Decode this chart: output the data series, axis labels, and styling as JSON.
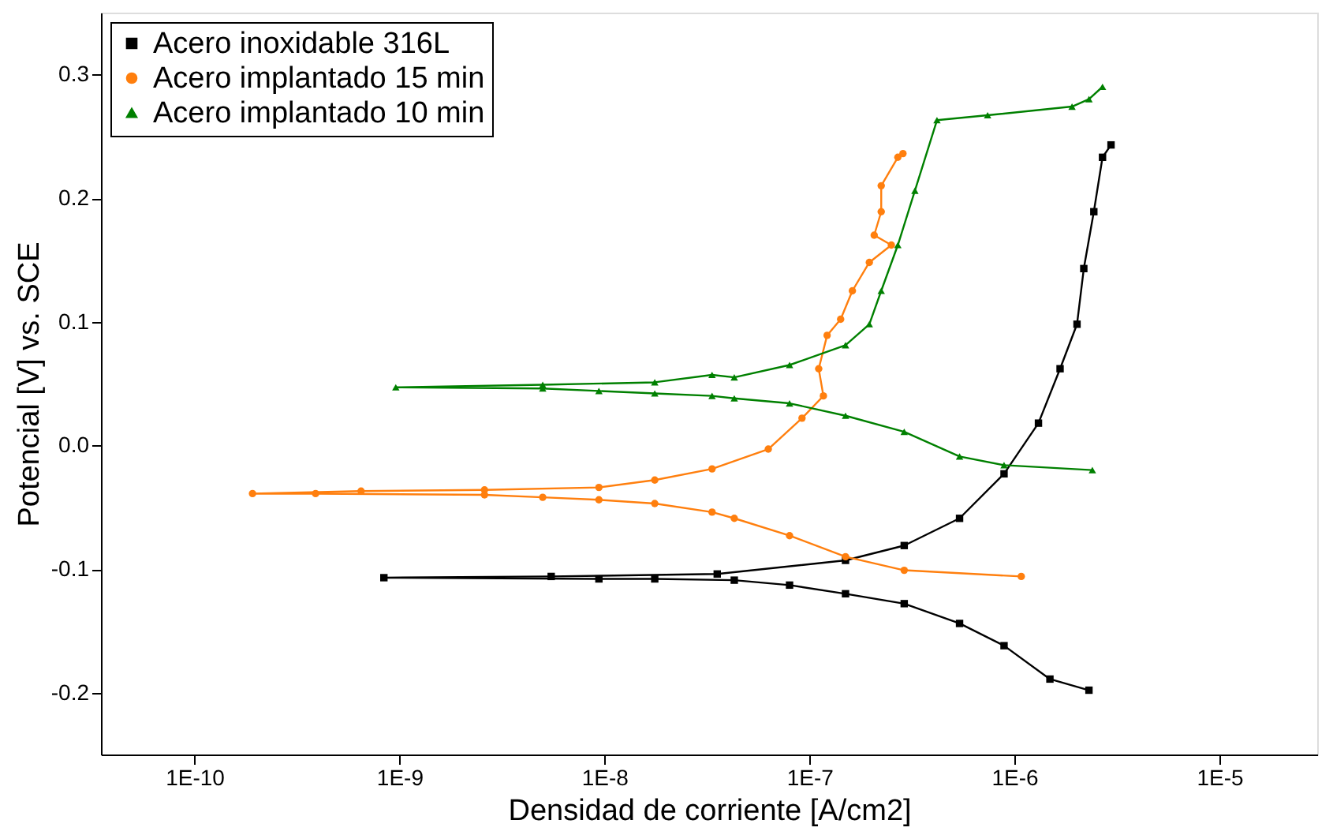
{
  "chart_data": {
    "type": "line",
    "xlabel": "Densidad de corriente [A/cm2]",
    "ylabel": "Potencial [V] vs. SCE",
    "log": "x",
    "grid": false,
    "legend": "top left",
    "xlim": [
      3.5e-11,
      3e-05
    ],
    "ylim": [
      -0.25,
      0.35
    ],
    "xticks": [
      {
        "value": 1e-10,
        "label": "1E-10"
      },
      {
        "value": 1e-09,
        "label": "1E-9"
      },
      {
        "value": 1e-08,
        "label": "1E-8"
      },
      {
        "value": 1e-07,
        "label": "1E-7"
      },
      {
        "value": 1e-06,
        "label": "1E-6"
      },
      {
        "value": 1e-05,
        "label": "1E-5"
      }
    ],
    "yticks": [
      -0.2,
      -0.1,
      {
        "value": 0,
        "label": "0.0"
      },
      0.1,
      0.2,
      0.3
    ],
    "series": [
      {
        "name": "Acero inoxidable 316L",
        "color": "#000000",
        "marker": "square",
        "x": [
          2.31e-06,
          1.49e-06,
          8.9e-07,
          5.4e-07,
          2.9e-07,
          1.5e-07,
          8e-08,
          4.3e-08,
          1.76e-08,
          9.4e-09,
          8.4e-10,
          5.5e-09,
          3.55e-08,
          1.5e-07,
          2.9e-07,
          5.4e-07,
          8.9e-07,
          1.31e-06,
          1.67e-06,
          2.02e-06,
          2.18e-06,
          2.44e-06,
          2.69e-06,
          2.96e-06
        ],
        "values": [
          -0.198,
          -0.189,
          -0.162,
          -0.144,
          -0.128,
          -0.12,
          -0.113,
          -0.109,
          -0.108,
          -0.108,
          -0.107,
          -0.106,
          -0.104,
          -0.093,
          -0.081,
          -0.059,
          -0.023,
          0.018,
          0.062,
          0.098,
          0.143,
          0.189,
          0.233,
          0.243
        ]
      },
      {
        "name": "Acero implantado 15 min",
        "color": "#ff7f0e",
        "marker": "circle",
        "x": [
          1.08e-06,
          2.9e-07,
          1.5e-07,
          8e-08,
          4.3e-08,
          3.35e-08,
          1.76e-08,
          9.4e-09,
          5e-09,
          2.6e-09,
          3.9e-10,
          1.92e-10,
          6.5e-10,
          2.6e-09,
          9.4e-09,
          1.76e-08,
          3.35e-08,
          6.3e-08,
          9.2e-08,
          1.17e-07,
          1.11e-07,
          1.22e-07,
          1.42e-07,
          1.62e-07,
          1.96e-07,
          2.51e-07,
          2.07e-07,
          2.24e-07,
          2.24e-07,
          2.7e-07,
          2.86e-07
        ],
        "values": [
          -0.106,
          -0.101,
          -0.09,
          -0.073,
          -0.059,
          -0.054,
          -0.047,
          -0.044,
          -0.042,
          -0.04,
          -0.039,
          -0.039,
          -0.037,
          -0.036,
          -0.034,
          -0.028,
          -0.019,
          -0.003,
          0.022,
          0.04,
          0.062,
          0.089,
          0.102,
          0.125,
          0.148,
          0.162,
          0.17,
          0.189,
          0.21,
          0.233,
          0.236
        ]
      },
      {
        "name": "Acero implantado 10 min",
        "color": "#008000",
        "marker": "triangle",
        "x": [
          2.4e-06,
          8.9e-07,
          5.4e-07,
          2.9e-07,
          1.5e-07,
          8e-08,
          4.3e-08,
          3.35e-08,
          1.76e-08,
          9.4e-09,
          5e-09,
          9.6e-10,
          5e-09,
          1.76e-08,
          3.35e-08,
          4.3e-08,
          8e-08,
          1.5e-07,
          1.96e-07,
          2.24e-07,
          2.7e-07,
          3.27e-07,
          4.19e-07,
          7.4e-07,
          1.91e-06,
          2.31e-06,
          2.69e-06
        ],
        "values": [
          -0.02,
          -0.016,
          -0.009,
          0.011,
          0.024,
          0.034,
          0.038,
          0.04,
          0.042,
          0.044,
          0.046,
          0.047,
          0.049,
          0.051,
          0.057,
          0.055,
          0.065,
          0.081,
          0.098,
          0.125,
          0.162,
          0.206,
          0.263,
          0.267,
          0.274,
          0.28,
          0.29
        ]
      }
    ]
  }
}
